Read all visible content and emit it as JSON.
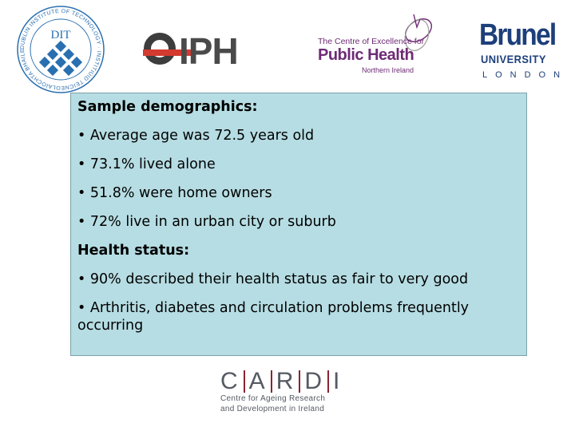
{
  "logos": {
    "dit": {
      "name": "DIT",
      "ring_text": "DUBLIN INSTITUTE OF TECHNOLOGY · INSTITIÚID TEICNEOLAÍOCHTA BHAILE ÁTHA CLIATH"
    },
    "iph": {
      "name": "IPH"
    },
    "cph": {
      "line1": "The Centre of Excellence for",
      "line2": "Public Health",
      "line3": "Northern Ireland"
    },
    "brunel": {
      "line1": "Brunel",
      "line2": "UNIVERSITY",
      "line3": "LONDON"
    },
    "cardi": {
      "letters": [
        "C",
        "A",
        "R",
        "D",
        "I"
      ],
      "line1": "Centre for Ageing Research",
      "line2": "and Development in Ireland"
    }
  },
  "panel": {
    "heading1": "Sample demographics:",
    "demographics": [
      "• Average age was 72.5 years old",
      "• 73.1% lived alone",
      "• 51.8% were home owners",
      "• 72% live in an urban city or suburb"
    ],
    "heading2": "Health status:",
    "health": [
      "• 90% described their health status as fair to very good",
      "• Arthritis, diabetes and circulation problems frequently occurring"
    ]
  },
  "colors": {
    "panel_bg": "#b6dde3",
    "dit_blue": "#2a6fb0",
    "iph_red": "#d43a2f",
    "cph_purple": "#6e2b75",
    "brunel_blue": "#1d3f7a",
    "cardi_red": "#8b2332"
  }
}
